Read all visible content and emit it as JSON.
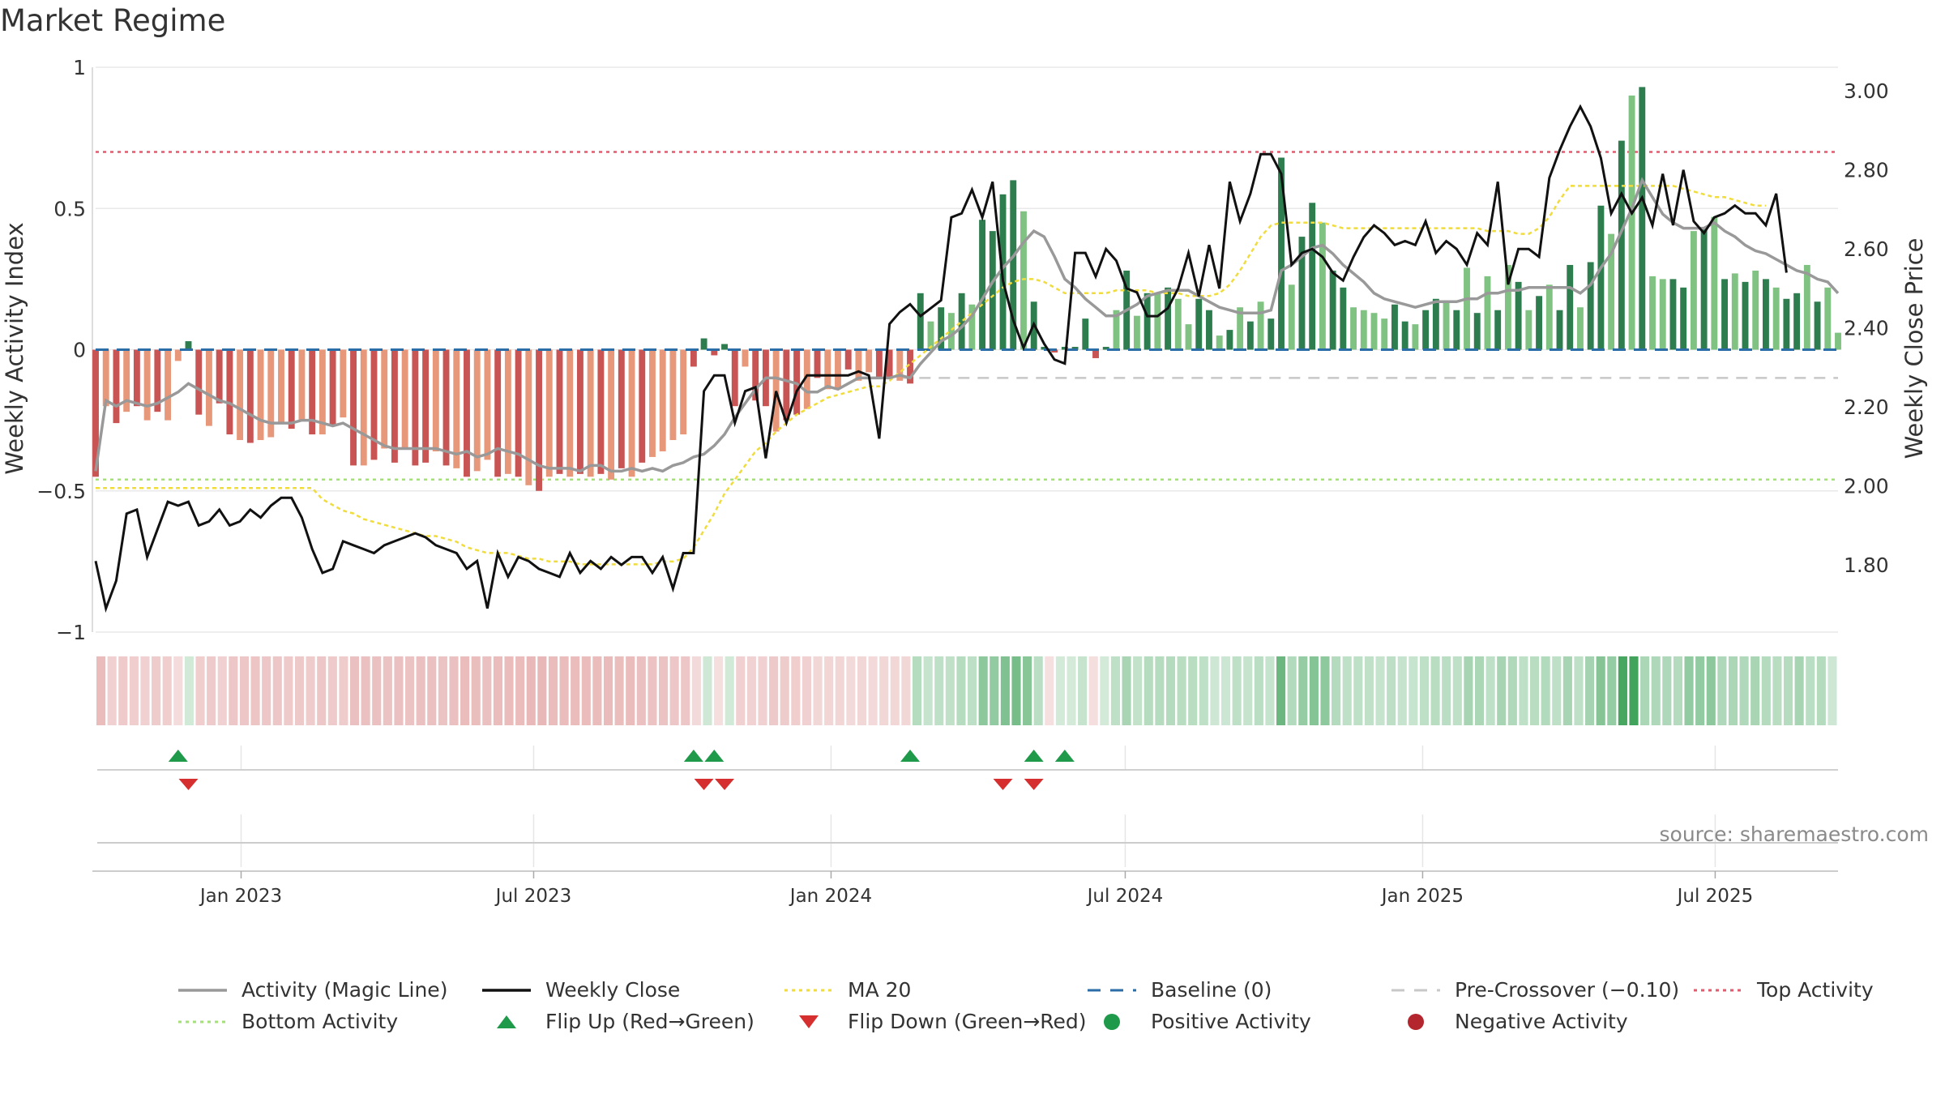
{
  "title": "Market Regime",
  "source": "source: sharemaestro.com",
  "colors": {
    "dark_green": "#2e7d4f",
    "light_green": "#80c282",
    "dark_red": "#c95454",
    "light_red": "#e8987a",
    "magic_line": "#999999",
    "close_line": "#111111",
    "ma20": "#f0dc3c",
    "baseline": "#2b6ea7",
    "pre_crossover": "#c8c8c8",
    "top": "#e05c6e",
    "bottom": "#a6e07a",
    "flip_up": "#1f9a4a",
    "flip_down": "#d62f2f",
    "positive": "#1f9a4a",
    "negative": "#b3262d"
  },
  "legend": [
    {
      "label": "Activity (Magic Line)",
      "kind": "line",
      "color": "#999999"
    },
    {
      "label": "Weekly Close",
      "kind": "line",
      "color": "#111111"
    },
    {
      "label": "MA 20",
      "kind": "dotted",
      "color": "#f0dc3c"
    },
    {
      "label": "Baseline (0)",
      "kind": "dashed",
      "color": "#2b6ea7"
    },
    {
      "label": "Pre-Crossover (−0.10)",
      "kind": "dashed",
      "color": "#c8c8c8"
    },
    {
      "label": "Top Activity",
      "kind": "dotted",
      "color": "#e05c6e"
    },
    {
      "label": "Bottom Activity",
      "kind": "dotted",
      "color": "#a6e07a"
    },
    {
      "label": "Flip Up (Red→Green)",
      "kind": "tri-up",
      "color": "#1f9a4a"
    },
    {
      "label": "Flip Down (Green→Red)",
      "kind": "tri-down",
      "color": "#d62f2f"
    },
    {
      "label": "Positive Activity",
      "kind": "dot",
      "color": "#1f9a4a"
    },
    {
      "label": "Negative Activity",
      "kind": "dot",
      "color": "#b3262d"
    }
  ],
  "chart_data": {
    "type": "bar",
    "title": "Market Regime",
    "ylabel": "Weekly Activity Index",
    "y2label": "Weekly Close Price",
    "ylim": [
      -1,
      1
    ],
    "y2lim": [
      1.63,
      3.06
    ],
    "yticks": [
      1,
      0.5,
      0,
      -0.5,
      -1
    ],
    "yticklabels": [
      "1",
      "0.5",
      "0",
      "−0.5",
      "−1"
    ],
    "y2ticks": [
      3.0,
      2.8,
      2.6,
      2.4,
      2.2,
      2.0,
      1.8
    ],
    "y2ticklabels": [
      "3.00",
      "2.80",
      "2.60",
      "2.40",
      "2.20",
      "2.00",
      "1.80"
    ],
    "x_start": "2022-10-03",
    "x_end": "2025-09-15",
    "xticks": [
      "2023-01-01",
      "2023-07-01",
      "2024-01-01",
      "2024-07-01",
      "2025-01-01",
      "2025-07-01"
    ],
    "xticklabels": [
      "Jan 2023",
      "Jul 2023",
      "Jan 2024",
      "Jul 2024",
      "Jan 2025",
      "Jul 2025"
    ],
    "reference_lines": {
      "top": 0.7,
      "bottom": -0.46,
      "baseline": 0,
      "pre_crossover": -0.1
    },
    "activity": [
      -0.45,
      -0.2,
      -0.26,
      -0.22,
      -0.2,
      -0.25,
      -0.22,
      -0.25,
      -0.04,
      0.03,
      -0.23,
      -0.27,
      -0.19,
      -0.3,
      -0.32,
      -0.33,
      -0.32,
      -0.31,
      -0.26,
      -0.28,
      -0.25,
      -0.3,
      -0.3,
      -0.27,
      -0.24,
      -0.41,
      -0.41,
      -0.39,
      -0.35,
      -0.4,
      -0.35,
      -0.41,
      -0.4,
      -0.36,
      -0.41,
      -0.42,
      -0.45,
      -0.43,
      -0.39,
      -0.45,
      -0.44,
      -0.45,
      -0.48,
      -0.5,
      -0.45,
      -0.44,
      -0.45,
      -0.44,
      -0.45,
      -0.44,
      -0.46,
      -0.42,
      -0.45,
      -0.4,
      -0.38,
      -0.36,
      -0.32,
      -0.3,
      -0.06,
      0.04,
      -0.02,
      0.02,
      -0.2,
      -0.06,
      -0.18,
      -0.2,
      -0.29,
      -0.25,
      -0.23,
      -0.21,
      -0.1,
      -0.14,
      -0.14,
      -0.07,
      -0.11,
      -0.08,
      -0.1,
      -0.1,
      -0.11,
      -0.12,
      0.2,
      0.1,
      0.15,
      0.13,
      0.2,
      0.16,
      0.46,
      0.42,
      0.55,
      0.6,
      0.49,
      0.17,
      0.01,
      -0.01,
      0.01,
      0.01,
      0.11,
      -0.03,
      0.01,
      0.14,
      0.28,
      0.12,
      0.2,
      0.2,
      0.22,
      0.18,
      0.09,
      0.18,
      0.14,
      0.05,
      0.07,
      0.15,
      0.1,
      0.17,
      0.11,
      0.68,
      0.23,
      0.4,
      0.52,
      0.45,
      0.28,
      0.22,
      0.15,
      0.14,
      0.13,
      0.11,
      0.16,
      0.1,
      0.09,
      0.14,
      0.18,
      0.17,
      0.14,
      0.29,
      0.13,
      0.26,
      0.14,
      0.3,
      0.24,
      0.14,
      0.19,
      0.23,
      0.14,
      0.3,
      0.15,
      0.31,
      0.51,
      0.41,
      0.74,
      0.9,
      0.93,
      0.26,
      0.25,
      0.25,
      0.22,
      0.42,
      0.43,
      0.47,
      0.25,
      0.27,
      0.24,
      0.28,
      0.25,
      0.22,
      0.18,
      0.2,
      0.3,
      0.17,
      0.22,
      0.06
    ],
    "intensity": [
      "d",
      "l",
      "d",
      "l",
      "d",
      "l",
      "d",
      "l",
      "l",
      "d",
      "d",
      "l",
      "d",
      "d",
      "l",
      "d",
      "l",
      "l",
      "l",
      "d",
      "l",
      "d",
      "l",
      "d",
      "l",
      "d",
      "l",
      "d",
      "l",
      "d",
      "l",
      "d",
      "d",
      "l",
      "d",
      "l",
      "d",
      "l",
      "l",
      "d",
      "l",
      "d",
      "l",
      "d",
      "l",
      "d",
      "l",
      "d",
      "l",
      "d",
      "l",
      "d",
      "l",
      "d",
      "l",
      "l",
      "l",
      "l",
      "d",
      "d",
      "d",
      "d",
      "d",
      "l",
      "d",
      "d",
      "l",
      "d",
      "d",
      "l",
      "d",
      "l",
      "l",
      "d",
      "l",
      "l",
      "d",
      "d",
      "l",
      "d",
      "d",
      "l",
      "d",
      "l",
      "d",
      "l",
      "d",
      "d",
      "d",
      "d",
      "l",
      "d",
      "d",
      "d",
      "d",
      "d",
      "d",
      "d",
      "d",
      "l",
      "d",
      "l",
      "d",
      "l",
      "d",
      "l",
      "l",
      "d",
      "d",
      "l",
      "d",
      "l",
      "d",
      "l",
      "d",
      "d",
      "l",
      "d",
      "d",
      "l",
      "d",
      "d",
      "l",
      "l",
      "l",
      "l",
      "d",
      "d",
      "l",
      "d",
      "d",
      "l",
      "d",
      "l",
      "d",
      "l",
      "d",
      "l",
      "d",
      "l",
      "d",
      "l",
      "d",
      "d",
      "l",
      "d",
      "d",
      "l",
      "d",
      "l",
      "d",
      "l",
      "l",
      "d",
      "d",
      "l",
      "d",
      "l",
      "d",
      "l",
      "d",
      "l",
      "d",
      "l",
      "d",
      "d",
      "l",
      "d",
      "l"
    ],
    "magic_line": [
      -0.43,
      -0.18,
      -0.2,
      -0.18,
      -0.19,
      -0.2,
      -0.19,
      -0.17,
      -0.15,
      -0.12,
      -0.14,
      -0.16,
      -0.18,
      -0.19,
      -0.21,
      -0.23,
      -0.25,
      -0.26,
      -0.26,
      -0.26,
      -0.25,
      -0.25,
      -0.26,
      -0.27,
      -0.26,
      -0.28,
      -0.3,
      -0.32,
      -0.34,
      -0.35,
      -0.35,
      -0.35,
      -0.35,
      -0.35,
      -0.36,
      -0.37,
      -0.36,
      -0.38,
      -0.37,
      -0.35,
      -0.36,
      -0.37,
      -0.39,
      -0.41,
      -0.42,
      -0.42,
      -0.42,
      -0.43,
      -0.41,
      -0.41,
      -0.43,
      -0.43,
      -0.42,
      -0.43,
      -0.42,
      -0.43,
      -0.41,
      -0.4,
      -0.38,
      -0.37,
      -0.34,
      -0.3,
      -0.24,
      -0.19,
      -0.14,
      -0.1,
      -0.1,
      -0.11,
      -0.12,
      -0.15,
      -0.15,
      -0.13,
      -0.14,
      -0.12,
      -0.1,
      -0.1,
      -0.1,
      -0.1,
      -0.09,
      -0.1,
      -0.05,
      -0.01,
      0.03,
      0.05,
      0.08,
      0.12,
      0.18,
      0.24,
      0.29,
      0.33,
      0.38,
      0.42,
      0.4,
      0.33,
      0.25,
      0.22,
      0.18,
      0.15,
      0.12,
      0.12,
      0.14,
      0.16,
      0.19,
      0.2,
      0.21,
      0.21,
      0.21,
      0.19,
      0.17,
      0.15,
      0.14,
      0.13,
      0.13,
      0.13,
      0.14,
      0.28,
      0.3,
      0.33,
      0.36,
      0.37,
      0.34,
      0.3,
      0.27,
      0.24,
      0.2,
      0.18,
      0.17,
      0.16,
      0.15,
      0.16,
      0.17,
      0.17,
      0.17,
      0.18,
      0.18,
      0.2,
      0.2,
      0.21,
      0.21,
      0.22,
      0.22,
      0.22,
      0.22,
      0.22,
      0.2,
      0.23,
      0.29,
      0.34,
      0.42,
      0.5,
      0.6,
      0.54,
      0.48,
      0.45,
      0.43,
      0.43,
      0.43,
      0.45,
      0.42,
      0.4,
      0.37,
      0.35,
      0.34,
      0.32,
      0.3,
      0.28,
      0.27,
      0.25,
      0.24,
      0.2
    ],
    "weekly_close": [
      1.81,
      1.69,
      1.76,
      1.93,
      1.94,
      1.82,
      1.89,
      1.96,
      1.95,
      1.96,
      1.9,
      1.91,
      1.94,
      1.9,
      1.91,
      1.94,
      1.92,
      1.95,
      1.97,
      1.97,
      1.92,
      1.84,
      1.78,
      1.79,
      1.86,
      1.85,
      1.84,
      1.83,
      1.85,
      1.86,
      1.87,
      1.88,
      1.87,
      1.85,
      1.84,
      1.83,
      1.79,
      1.81,
      1.69,
      1.83,
      1.77,
      1.82,
      1.81,
      1.79,
      1.78,
      1.77,
      1.83,
      1.78,
      1.81,
      1.79,
      1.82,
      1.8,
      1.82,
      1.82,
      1.78,
      1.82,
      1.74,
      1.83,
      1.83,
      2.24,
      2.28,
      2.28,
      2.16,
      2.24,
      2.25,
      2.07,
      2.24,
      2.16,
      2.24,
      2.28,
      2.28,
      2.28,
      2.28,
      2.28,
      2.29,
      2.28,
      2.12,
      2.41,
      2.44,
      2.46,
      2.43,
      2.45,
      2.47,
      2.68,
      2.69,
      2.75,
      2.68,
      2.77,
      2.52,
      2.42,
      2.35,
      2.41,
      2.36,
      2.32,
      2.31,
      2.59,
      2.59,
      2.53,
      2.6,
      2.57,
      2.5,
      2.49,
      2.43,
      2.43,
      2.45,
      2.5,
      2.59,
      2.48,
      2.61,
      2.5,
      2.77,
      2.67,
      2.74,
      2.84,
      2.84,
      2.79,
      2.56,
      2.59,
      2.6,
      2.58,
      2.54,
      2.52,
      2.58,
      2.63,
      2.66,
      2.64,
      2.61,
      2.62,
      2.61,
      2.67,
      2.59,
      2.62,
      2.6,
      2.56,
      2.64,
      2.61,
      2.77,
      2.51,
      2.6,
      2.6,
      2.58,
      2.78,
      2.85,
      2.91,
      2.96,
      2.91,
      2.83,
      2.69,
      2.74,
      2.69,
      2.73,
      2.66,
      2.79,
      2.66,
      2.8,
      2.67,
      2.64,
      2.68,
      2.69,
      2.71,
      2.69,
      2.69,
      2.66,
      2.74,
      2.54
    ],
    "ma20": [
      -0.49,
      -0.49,
      -0.49,
      -0.49,
      -0.49,
      -0.49,
      -0.49,
      -0.49,
      -0.49,
      -0.49,
      -0.49,
      -0.49,
      -0.49,
      -0.49,
      -0.49,
      -0.49,
      -0.49,
      -0.49,
      -0.49,
      -0.49,
      -0.49,
      -0.49,
      -0.53,
      -0.55,
      -0.57,
      -0.58,
      -0.6,
      -0.61,
      -0.62,
      -0.63,
      -0.64,
      -0.65,
      -0.66,
      -0.66,
      -0.67,
      -0.68,
      -0.7,
      -0.71,
      -0.72,
      -0.72,
      -0.72,
      -0.73,
      -0.74,
      -0.74,
      -0.75,
      -0.75,
      -0.75,
      -0.76,
      -0.76,
      -0.76,
      -0.76,
      -0.76,
      -0.76,
      -0.76,
      -0.76,
      -0.75,
      -0.75,
      -0.74,
      -0.7,
      -0.64,
      -0.58,
      -0.51,
      -0.46,
      -0.41,
      -0.36,
      -0.33,
      -0.29,
      -0.26,
      -0.23,
      -0.21,
      -0.19,
      -0.17,
      -0.16,
      -0.15,
      -0.14,
      -0.13,
      -0.13,
      -0.11,
      -0.08,
      -0.05,
      -0.02,
      0.01,
      0.04,
      0.07,
      0.1,
      0.13,
      0.16,
      0.19,
      0.22,
      0.24,
      0.25,
      0.25,
      0.24,
      0.22,
      0.2,
      0.2,
      0.2,
      0.2,
      0.2,
      0.21,
      0.21,
      0.21,
      0.21,
      0.2,
      0.2,
      0.2,
      0.19,
      0.19,
      0.19,
      0.2,
      0.23,
      0.28,
      0.34,
      0.4,
      0.44,
      0.45,
      0.45,
      0.45,
      0.45,
      0.45,
      0.44,
      0.43,
      0.43,
      0.43,
      0.43,
      0.43,
      0.43,
      0.43,
      0.43,
      0.43,
      0.43,
      0.43,
      0.43,
      0.43,
      0.43,
      0.42,
      0.42,
      0.42,
      0.41,
      0.41,
      0.43,
      0.47,
      0.53,
      0.58,
      0.58,
      0.58,
      0.58,
      0.58,
      0.58,
      0.58,
      0.58,
      0.58,
      0.58,
      0.58,
      0.57,
      0.56,
      0.55,
      0.54,
      0.54,
      0.53,
      0.52,
      0.51,
      0.51
    ],
    "flip_up_weeks": [
      8,
      58,
      60,
      79,
      91,
      94
    ],
    "flip_down_weeks": [
      9,
      59,
      61,
      88,
      91
    ],
    "bands": {
      "count": 158
    }
  }
}
